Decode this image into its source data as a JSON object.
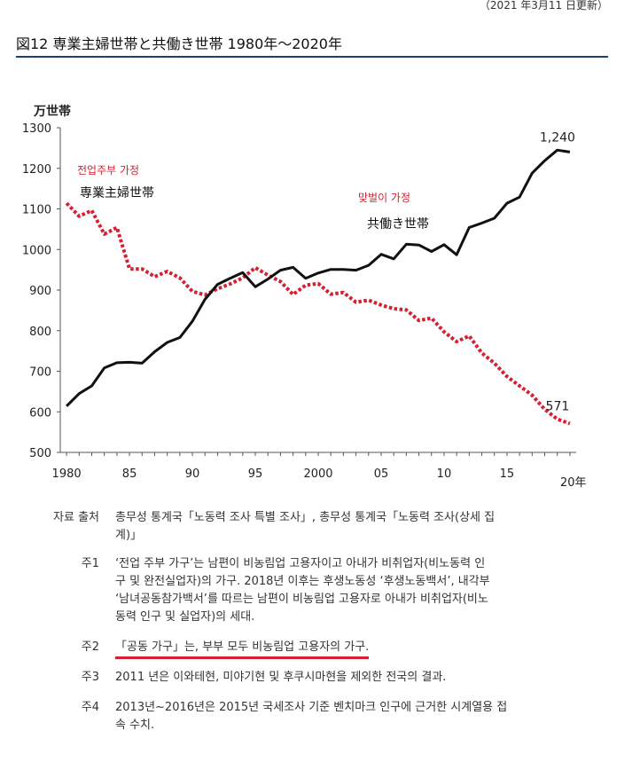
{
  "header": {
    "updated": "（2021 年3月11 日更新）",
    "figure_title": "図12  専業主婦世帯と共働き世帯  1980年〜2020年"
  },
  "chart_data": {
    "type": "line",
    "ylabel": "万世帯",
    "xlabel": "20年",
    "ylim": [
      500,
      1300
    ],
    "xlim": [
      1979.5,
      2020.5
    ],
    "yticks": [
      500,
      600,
      700,
      800,
      900,
      1000,
      1100,
      1200,
      1300
    ],
    "xticks": [
      {
        "value": 1980,
        "label": "1980"
      },
      {
        "value": 1985,
        "label": "85"
      },
      {
        "value": 1990,
        "label": "90"
      },
      {
        "value": 1995,
        "label": "95"
      },
      {
        "value": 2000,
        "label": "2000"
      },
      {
        "value": 2005,
        "label": "05"
      },
      {
        "value": 2010,
        "label": "10"
      },
      {
        "value": 2015,
        "label": "15"
      }
    ],
    "grid": false,
    "x": [
      1980,
      1981,
      1982,
      1983,
      1984,
      1985,
      1986,
      1987,
      1988,
      1989,
      1990,
      1991,
      1992,
      1993,
      1994,
      1995,
      1996,
      1997,
      1998,
      1999,
      2000,
      2001,
      2002,
      2003,
      2004,
      2005,
      2006,
      2007,
      2008,
      2009,
      2010,
      2011,
      2012,
      2013,
      2014,
      2015,
      2016,
      2017,
      2018,
      2019,
      2020
    ],
    "series": [
      {
        "name": "専業主婦世帯",
        "name_ko": "전업주부 가정",
        "color": "#d42030",
        "style": "dotted",
        "values": [
          1114,
          1082,
          1096,
          1038,
          1054,
          952,
          952,
          933,
          946,
          930,
          897,
          888,
          903,
          915,
          930,
          955,
          937,
          921,
          889,
          912,
          916,
          890,
          894,
          870,
          875,
          863,
          854,
          851,
          825,
          831,
          797,
          773,
          787,
          745,
          720,
          687,
          664,
          641,
          606,
          582,
          571
        ],
        "end_label": "571"
      },
      {
        "name": "共働き世帯",
        "name_ko": "맞벌이 가정",
        "color": "#111111",
        "style": "solid",
        "values": [
          614,
          645,
          664,
          708,
          721,
          722,
          720,
          748,
          771,
          783,
          823,
          877,
          914,
          929,
          943,
          908,
          927,
          949,
          956,
          929,
          942,
          951,
          951,
          949,
          961,
          988,
          977,
          1013,
          1011,
          995,
          1012,
          987,
          1054,
          1065,
          1077,
          1114,
          1129,
          1188,
          1219,
          1245,
          1240
        ],
        "end_label": "1,240"
      }
    ]
  },
  "notes": [
    {
      "label": "자료 출처",
      "lines": [
        "총무성 통계국「노동력 조사 특별 조사」, 총무성 통계국「노동력 조사(상세 집",
        "계)」"
      ]
    },
    {
      "label": "주1",
      "lines": [
        "‘전업 주부 가구’는 남편이 비농림업 고용자이고 아내가 비취업자(비노동력 인",
        "구 및 완전실업자)의 가구. 2018년 이후는 후생노동성 ‘후생노동백서’, 내각부",
        "‘남녀공동참가백서’를 따르는 남편이 비농림업 고용자로 아내가 비취업자(비노",
        "동력 인구 및 실업자)의 세대."
      ]
    },
    {
      "label": "주2",
      "lines": [
        "「공동 가구」는, 부부 모두 비농림업 고용자의 가구."
      ],
      "underline": true
    },
    {
      "label": "주3",
      "lines": [
        "2011 년은 이와테현, 미야기현 및 후쿠시마현을 제외한 전국의 결과."
      ]
    },
    {
      "label": "주4",
      "lines": [
        "2013년~2016년은 2015년 국세조사 기준 벤치마크 인구에 근거한 시계열용 접",
        "속 수치."
      ]
    }
  ]
}
